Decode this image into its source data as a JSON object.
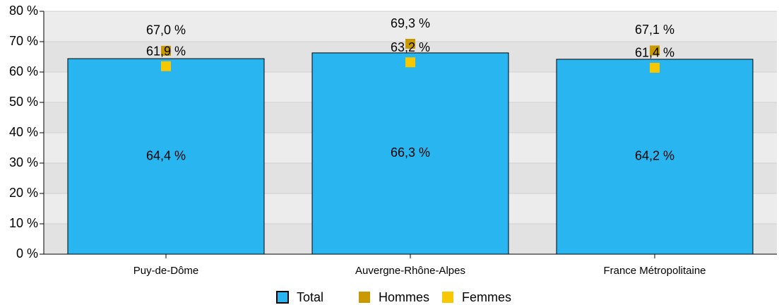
{
  "chart_data": {
    "type": "bar",
    "categories": [
      "Puy-de-Dôme",
      "Auvergne-Rhône-Alpes",
      "France Métropolitaine"
    ],
    "series": [
      {
        "name": "Total",
        "type": "bar",
        "color": "#29b6f0",
        "values": [
          64.4,
          66.3,
          64.2
        ],
        "value_labels": [
          "64,4 %",
          "66,3 %",
          "64,2 %"
        ]
      },
      {
        "name": "Hommes",
        "type": "scatter",
        "color": "#c89a00",
        "values": [
          67.0,
          69.3,
          67.1
        ],
        "value_labels": [
          "67,0 %",
          "69,3 %",
          "67,1 %"
        ]
      },
      {
        "name": "Femmes",
        "type": "scatter",
        "color": "#f7c800",
        "values": [
          61.9,
          63.2,
          61.4
        ],
        "value_labels": [
          "61,9 %",
          "63,2 %",
          "61,4 %"
        ]
      }
    ],
    "ylim": [
      0,
      80
    ],
    "yticks": [
      {
        "value": 0,
        "label": "0 %"
      },
      {
        "value": 10,
        "label": "10 %"
      },
      {
        "value": 20,
        "label": "20 %"
      },
      {
        "value": 30,
        "label": "30 %"
      },
      {
        "value": 40,
        "label": "40 %"
      },
      {
        "value": 50,
        "label": "50 %"
      },
      {
        "value": 60,
        "label": "60 %"
      },
      {
        "value": 70,
        "label": "70 %"
      },
      {
        "value": 80,
        "label": "80 %"
      }
    ],
    "legend": "bottom"
  }
}
